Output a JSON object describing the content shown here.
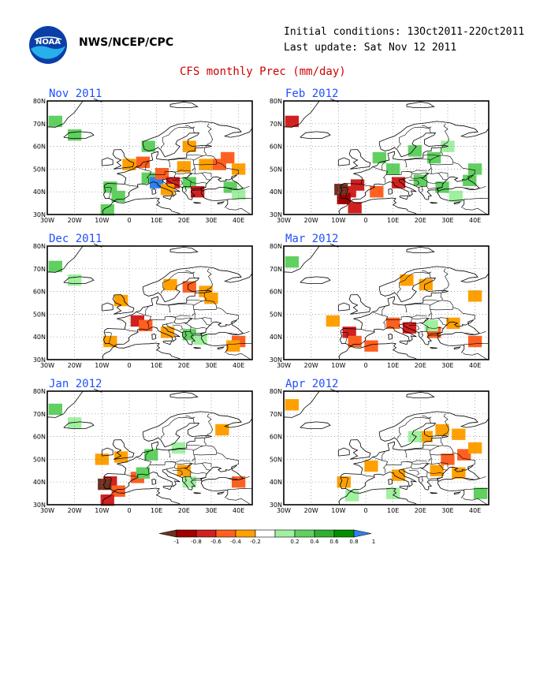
{
  "header": {
    "agency": "NWS/NCEP/CPC",
    "initial_conditions": "Initial conditions: 13Oct2011-22Oct2011",
    "last_update": "Last update: Sat Nov 12 2011",
    "title": "CFS monthly Prec (mm/day)",
    "logo_text": "NOAA"
  },
  "map": {
    "lon_labels": [
      "30W",
      "20W",
      "10W",
      "0",
      "10E",
      "20E",
      "30E",
      "40E"
    ],
    "lat_labels": [
      "80N",
      "70N",
      "60N",
      "50N",
      "40N",
      "30N"
    ],
    "panels": [
      {
        "title": "Nov 2011",
        "anomalies": [
          {
            "lon": -27,
            "lat": 71,
            "v": 0.5
          },
          {
            "lon": -20,
            "lat": 65,
            "v": 0.4
          },
          {
            "lon": -7,
            "lat": 42,
            "v": 0.5
          },
          {
            "lon": -4,
            "lat": 38,
            "v": 0.4
          },
          {
            "lon": -8,
            "lat": 32,
            "v": 0.4
          },
          {
            "lon": 7,
            "lat": 46,
            "v": 0.5
          },
          {
            "lon": 10,
            "lat": 44,
            "v": 1.0
          },
          {
            "lon": 22,
            "lat": 44,
            "v": 0.4
          },
          {
            "lon": 37,
            "lat": 42,
            "v": 0.4
          },
          {
            "lon": 40,
            "lat": 39,
            "v": 0.3
          },
          {
            "lon": 7,
            "lat": 60,
            "v": 0.4
          },
          {
            "lon": 0,
            "lat": 52,
            "v": -0.3
          },
          {
            "lon": 5,
            "lat": 53,
            "v": -0.4
          },
          {
            "lon": 12,
            "lat": 48,
            "v": -0.5
          },
          {
            "lon": 20,
            "lat": 51,
            "v": -0.3
          },
          {
            "lon": 28,
            "lat": 52,
            "v": -0.3
          },
          {
            "lon": 36,
            "lat": 55,
            "v": -0.4
          },
          {
            "lon": 40,
            "lat": 50,
            "v": -0.3
          },
          {
            "lon": 22,
            "lat": 60,
            "v": -0.3
          },
          {
            "lon": 16,
            "lat": 44,
            "v": -0.6
          },
          {
            "lon": 25,
            "lat": 40,
            "v": -0.6
          },
          {
            "lon": 33,
            "lat": 52,
            "v": -0.5
          },
          {
            "lon": 14,
            "lat": 41,
            "v": -0.3
          }
        ]
      },
      {
        "title": "Feb 2012",
        "anomalies": [
          {
            "lon": -27,
            "lat": 71,
            "v": -0.6
          },
          {
            "lon": -6,
            "lat": 40,
            "v": -0.7
          },
          {
            "lon": -8,
            "lat": 37,
            "v": -0.9
          },
          {
            "lon": -3,
            "lat": 43,
            "v": -0.6
          },
          {
            "lon": 4,
            "lat": 40,
            "v": -0.5
          },
          {
            "lon": 12,
            "lat": 44,
            "v": -0.7
          },
          {
            "lon": -4,
            "lat": 33,
            "v": -0.6
          },
          {
            "lon": -9,
            "lat": 41,
            "v": -1.0
          },
          {
            "lon": 5,
            "lat": 55,
            "v": 0.4
          },
          {
            "lon": 10,
            "lat": 50,
            "v": 0.5
          },
          {
            "lon": 18,
            "lat": 58,
            "v": 0.4
          },
          {
            "lon": 25,
            "lat": 55,
            "v": 0.4
          },
          {
            "lon": 30,
            "lat": 60,
            "v": 0.3
          },
          {
            "lon": 20,
            "lat": 45,
            "v": 0.5
          },
          {
            "lon": 28,
            "lat": 42,
            "v": 0.4
          },
          {
            "lon": 38,
            "lat": 45,
            "v": 0.4
          },
          {
            "lon": 40,
            "lat": 50,
            "v": 0.4
          },
          {
            "lon": 33,
            "lat": 38,
            "v": 0.3
          }
        ]
      },
      {
        "title": "Dec 2011",
        "anomalies": [
          {
            "lon": -27,
            "lat": 71,
            "v": 0.4
          },
          {
            "lon": -20,
            "lat": 65,
            "v": 0.3
          },
          {
            "lon": -3,
            "lat": 56,
            "v": -0.3
          },
          {
            "lon": 15,
            "lat": 63,
            "v": -0.3
          },
          {
            "lon": 22,
            "lat": 62,
            "v": -0.4
          },
          {
            "lon": 28,
            "lat": 60,
            "v": -0.3
          },
          {
            "lon": 30,
            "lat": 57,
            "v": -0.3
          },
          {
            "lon": 3,
            "lat": 47,
            "v": -0.6
          },
          {
            "lon": 6,
            "lat": 45,
            "v": -0.4
          },
          {
            "lon": -7,
            "lat": 38,
            "v": -0.3
          },
          {
            "lon": 14,
            "lat": 42,
            "v": -0.3
          },
          {
            "lon": 40,
            "lat": 38,
            "v": -0.5
          },
          {
            "lon": 38,
            "lat": 36,
            "v": -0.3
          },
          {
            "lon": 22,
            "lat": 41,
            "v": 0.4
          },
          {
            "lon": 26,
            "lat": 39,
            "v": 0.3
          }
        ]
      },
      {
        "title": "Mar 2012",
        "anomalies": [
          {
            "lon": -27,
            "lat": 73,
            "v": 0.4
          },
          {
            "lon": 15,
            "lat": 65,
            "v": -0.3
          },
          {
            "lon": 22,
            "lat": 63,
            "v": -0.3
          },
          {
            "lon": 40,
            "lat": 58,
            "v": -0.3
          },
          {
            "lon": -6,
            "lat": 42,
            "v": -0.6
          },
          {
            "lon": -4,
            "lat": 38,
            "v": -0.5
          },
          {
            "lon": 2,
            "lat": 36,
            "v": -0.5
          },
          {
            "lon": 10,
            "lat": 46,
            "v": -0.5
          },
          {
            "lon": 16,
            "lat": 44,
            "v": -0.6
          },
          {
            "lon": 25,
            "lat": 42,
            "v": -0.4
          },
          {
            "lon": 32,
            "lat": 46,
            "v": -0.3
          },
          {
            "lon": 40,
            "lat": 38,
            "v": -0.4
          },
          {
            "lon": -12,
            "lat": 47,
            "v": -0.3
          },
          {
            "lon": 24,
            "lat": 45,
            "v": 0.3
          }
        ]
      },
      {
        "title": "Jan 2012",
        "anomalies": [
          {
            "lon": -27,
            "lat": 72,
            "v": 0.5
          },
          {
            "lon": -20,
            "lat": 66,
            "v": 0.3
          },
          {
            "lon": -7,
            "lat": 40,
            "v": -0.7
          },
          {
            "lon": -9,
            "lat": 39,
            "v": -1.0
          },
          {
            "lon": -4,
            "lat": 36,
            "v": -0.5
          },
          {
            "lon": 3,
            "lat": 42,
            "v": -0.5
          },
          {
            "lon": -8,
            "lat": 32,
            "v": -0.6
          },
          {
            "lon": -10,
            "lat": 50,
            "v": -0.3
          },
          {
            "lon": -3,
            "lat": 51,
            "v": -0.3
          },
          {
            "lon": 20,
            "lat": 45,
            "v": -0.3
          },
          {
            "lon": 34,
            "lat": 63,
            "v": -0.3
          },
          {
            "lon": 40,
            "lat": 40,
            "v": -0.4
          },
          {
            "lon": 8,
            "lat": 52,
            "v": 0.4
          },
          {
            "lon": 18,
            "lat": 55,
            "v": 0.3
          },
          {
            "lon": 5,
            "lat": 44,
            "v": 0.4
          },
          {
            "lon": 22,
            "lat": 40,
            "v": 0.3
          }
        ]
      },
      {
        "title": "Apr 2012",
        "anomalies": [
          {
            "lon": -27,
            "lat": 74,
            "v": -0.3
          },
          {
            "lon": 28,
            "lat": 63,
            "v": -0.3
          },
          {
            "lon": 34,
            "lat": 61,
            "v": -0.3
          },
          {
            "lon": 22,
            "lat": 60,
            "v": -0.3
          },
          {
            "lon": 30,
            "lat": 50,
            "v": -0.4
          },
          {
            "lon": 36,
            "lat": 52,
            "v": -0.4
          },
          {
            "lon": 40,
            "lat": 55,
            "v": -0.3
          },
          {
            "lon": 26,
            "lat": 45,
            "v": -0.3
          },
          {
            "lon": 34,
            "lat": 44,
            "v": -0.3
          },
          {
            "lon": 2,
            "lat": 47,
            "v": -0.3
          },
          {
            "lon": -8,
            "lat": 40,
            "v": -0.3
          },
          {
            "lon": 12,
            "lat": 43,
            "v": -0.3
          },
          {
            "lon": 42,
            "lat": 35,
            "v": 0.4
          },
          {
            "lon": -5,
            "lat": 34,
            "v": 0.3
          },
          {
            "lon": 10,
            "lat": 35,
            "v": 0.3
          },
          {
            "lon": 18,
            "lat": 60,
            "v": 0.3
          }
        ]
      }
    ]
  },
  "colorbar": {
    "labels": [
      "-1",
      "-0.8",
      "-0.6",
      "-0.4",
      "-0.2",
      "0.2",
      "0.4",
      "0.6",
      "0.8",
      "1"
    ],
    "colors": [
      "#703020",
      "#a00000",
      "#d02020",
      "#ff6020",
      "#ffa000",
      "#ffffff",
      "#a0f0a0",
      "#60d060",
      "#30b030",
      "#009000",
      "#3080f0"
    ]
  }
}
